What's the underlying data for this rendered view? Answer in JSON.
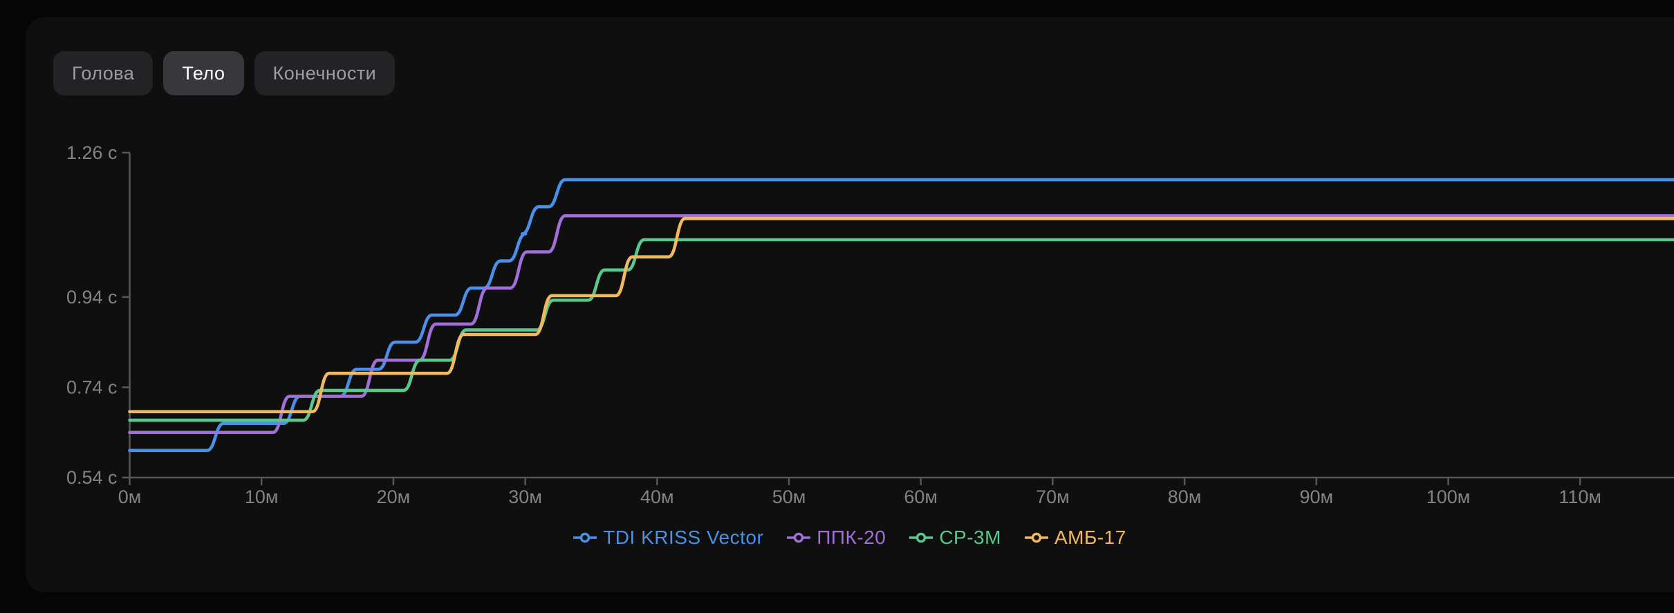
{
  "tabs": {
    "items": [
      {
        "label": "Голова",
        "active": false
      },
      {
        "label": "Тело",
        "active": true
      },
      {
        "label": "Конечности",
        "active": false
      }
    ]
  },
  "chart_data": {
    "type": "line",
    "line_style": "stepped",
    "title": "",
    "xlabel": "",
    "ylabel": "",
    "x_unit": "м",
    "y_unit": "с",
    "grid": false,
    "legend_position": "bottom-center",
    "x_axis": {
      "min": 0,
      "max": 117,
      "tick_step": 10,
      "tick_labels": [
        "0м",
        "10м",
        "20м",
        "30м",
        "40м",
        "50м",
        "60м",
        "70м",
        "80м",
        "90м",
        "100м",
        "110м"
      ]
    },
    "y_axis": {
      "min": 0.54,
      "max": 1.26,
      "ticks": [
        {
          "value": 1.26,
          "label": "1.26 с"
        },
        {
          "value": 0.94,
          "label": "0.94 с"
        },
        {
          "value": 0.74,
          "label": "0.74 с"
        },
        {
          "value": 0.54,
          "label": "0.54 с"
        }
      ]
    },
    "series": [
      {
        "name": "TDI KRISS Vector",
        "color": "#4a90e8",
        "points": [
          [
            0,
            0.6
          ],
          [
            6.5,
            0.66
          ],
          [
            12.3,
            0.72
          ],
          [
            16.6,
            0.78
          ],
          [
            19.5,
            0.84
          ],
          [
            22.3,
            0.9
          ],
          [
            25.3,
            0.96
          ],
          [
            27.5,
            1.02
          ],
          [
            29.4,
            1.08
          ],
          [
            30.4,
            1.14
          ],
          [
            32.4,
            1.2
          ]
        ]
      },
      {
        "name": "ППК-20",
        "color": "#a06fd8",
        "points": [
          [
            0,
            0.64
          ],
          [
            11.5,
            0.72
          ],
          [
            18.2,
            0.8
          ],
          [
            22.6,
            0.88
          ],
          [
            26.5,
            0.96
          ],
          [
            29.5,
            1.04
          ],
          [
            32.4,
            1.12
          ]
        ]
      },
      {
        "name": "СР-3М",
        "color": "#57c98c",
        "points": [
          [
            0,
            0.667
          ],
          [
            13.8,
            0.733
          ],
          [
            21.4,
            0.8
          ],
          [
            24.9,
            0.867
          ],
          [
            31.5,
            0.933
          ],
          [
            35.4,
            1.0
          ],
          [
            38.4,
            1.067
          ]
        ]
      },
      {
        "name": "АМБ-17",
        "color": "#f0b95f",
        "points": [
          [
            0,
            0.686
          ],
          [
            14.5,
            0.771
          ],
          [
            24.7,
            0.857
          ],
          [
            31.4,
            0.943
          ],
          [
            37.5,
            1.029
          ],
          [
            41.5,
            1.114
          ]
        ]
      }
    ]
  },
  "colors": {
    "page_bg": "#050506",
    "card_bg": "#0f0f10",
    "axis_line": "#58585c",
    "axis_text": "#828388"
  }
}
